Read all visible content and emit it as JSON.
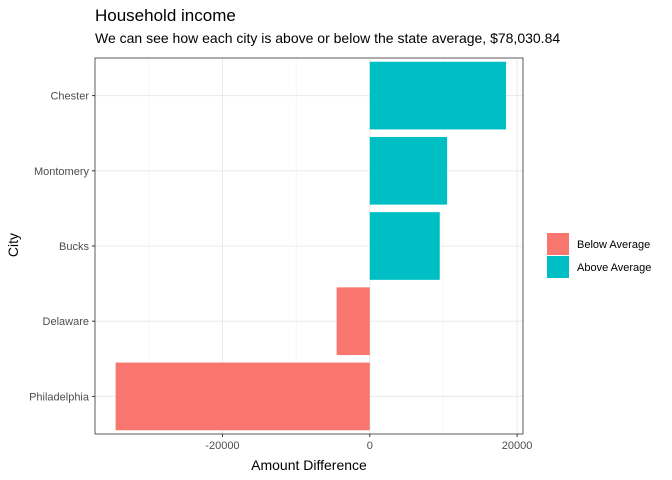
{
  "chart_data": {
    "type": "bar",
    "orientation": "horizontal",
    "title": "Household income",
    "subtitle": "We can see how each city is above or below the state average, $78,030.84",
    "xlabel": "Amount Difference",
    "ylabel": "City",
    "categories": [
      "Philadelphia",
      "Delaware",
      "Bucks",
      "Montomery",
      "Chester"
    ],
    "values": [
      -34500,
      -4500,
      9500,
      10500,
      18500
    ],
    "groups": [
      "Below Average",
      "Below Average",
      "Above Average",
      "Above Average",
      "Above Average"
    ],
    "xlim": [
      -37300,
      20800
    ],
    "xticks": [
      -20000,
      0,
      20000
    ],
    "xtick_labels": [
      "-20000",
      "0",
      "20000"
    ],
    "grid": true,
    "legend": {
      "position": "right",
      "entries": [
        {
          "label": "Below Average",
          "color": "#F8766D"
        },
        {
          "label": "Above Average",
          "color": "#00BFC4"
        }
      ]
    }
  }
}
